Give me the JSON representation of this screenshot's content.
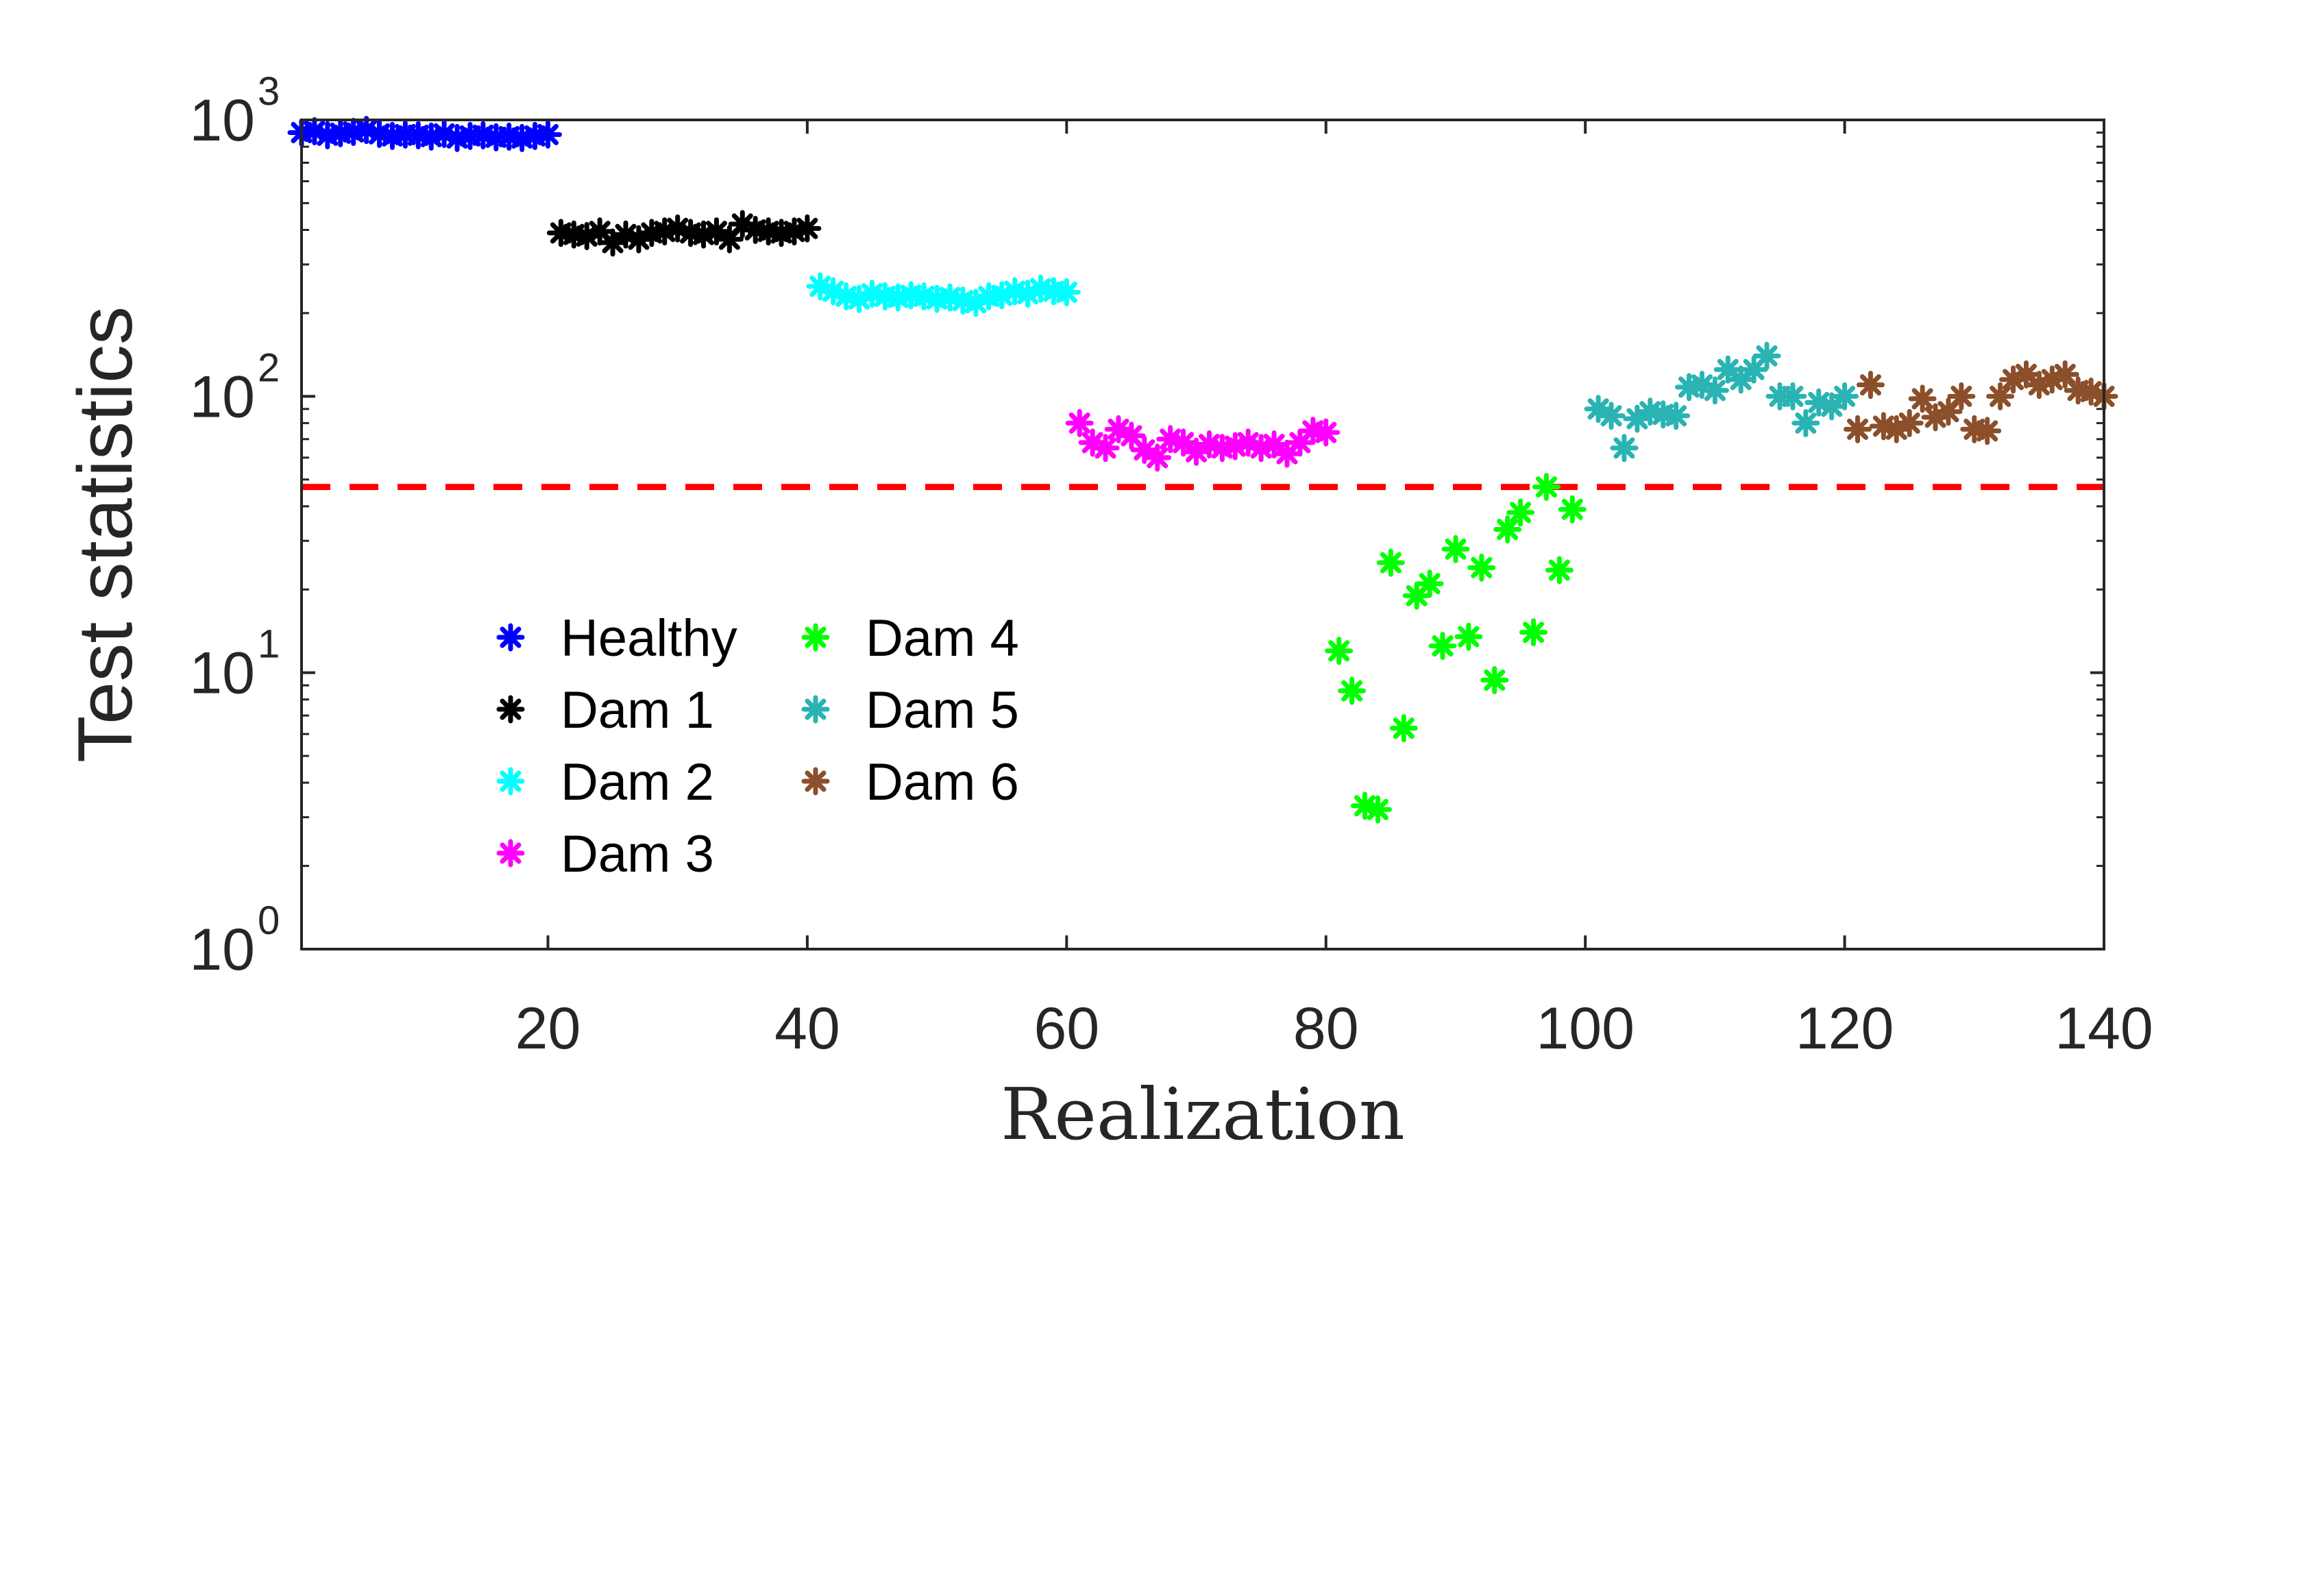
{
  "chart_data": {
    "type": "scatter",
    "title": "",
    "xlabel": "Realization",
    "ylabel": "Test statistics",
    "xlim": [
      1,
      140
    ],
    "ylim": [
      1,
      1000
    ],
    "yscale": "log",
    "xticks": [
      20,
      40,
      60,
      80,
      100,
      120,
      140
    ],
    "xtick_labels": [
      "20",
      "40",
      "60",
      "80",
      "100",
      "120",
      "140"
    ],
    "yticks": [
      1,
      10,
      100,
      1000
    ],
    "ytick_labels": [
      {
        "base": "10",
        "exp": "0"
      },
      {
        "base": "10",
        "exp": "1"
      },
      {
        "base": "10",
        "exp": "2"
      },
      {
        "base": "10",
        "exp": "3"
      }
    ],
    "marker": "asterisk",
    "legend_position": "lower-left",
    "threshold": {
      "value": 47,
      "color": "#ff0000",
      "style": "dashed"
    },
    "series": [
      {
        "name": "Healthy",
        "color": "#0000ff",
        "x_start": 1,
        "values": [
          900,
          910,
          880,
          895,
          905,
          920,
          890,
          875,
          885,
          880,
          870,
          890,
          860,
          875,
          880,
          865,
          870,
          860,
          875,
          885
        ]
      },
      {
        "name": "Dam 1",
        "color": "#000000",
        "x_start": 21,
        "values": [
          390,
          385,
          380,
          395,
          360,
          385,
          370,
          390,
          395,
          405,
          390,
          385,
          395,
          370,
          420,
          400,
          395,
          390,
          395,
          405
        ]
      },
      {
        "name": "Dam 2",
        "color": "#00ffff",
        "x_start": 41,
        "values": [
          250,
          240,
          230,
          225,
          235,
          230,
          228,
          232,
          230,
          225,
          228,
          222,
          218,
          230,
          232,
          240,
          235,
          245,
          240,
          238
        ]
      },
      {
        "name": "Dam 3",
        "color": "#ff00ff",
        "x_start": 61,
        "values": [
          80,
          68,
          65,
          76,
          72,
          64,
          60,
          70,
          68,
          63,
          67,
          65,
          66,
          68,
          65,
          67,
          62,
          68,
          75,
          74
        ]
      },
      {
        "name": "Dam 4",
        "color": "#00ff00",
        "x_start": 81,
        "values": [
          12,
          8.6,
          3.3,
          3.2,
          25,
          6.3,
          19,
          21,
          12.5,
          28,
          13.5,
          24,
          9.4,
          33,
          38,
          14,
          47,
          23.5,
          39,
          null
        ]
      },
      {
        "name": "Dam 5",
        "color": "#2ab3b3",
        "x_start": 101,
        "values": [
          90,
          85,
          65,
          83,
          88,
          86,
          85,
          108,
          110,
          105,
          125,
          115,
          125,
          140,
          100,
          100,
          80,
          95,
          92,
          100
        ]
      },
      {
        "name": "Dam 6",
        "color": "#8b4f2a",
        "x_start": 121,
        "values": [
          76,
          110,
          78,
          76,
          80,
          98,
          84,
          88,
          100,
          76,
          75,
          100,
          115,
          120,
          110,
          115,
          120,
          105,
          104,
          100
        ]
      }
    ]
  }
}
